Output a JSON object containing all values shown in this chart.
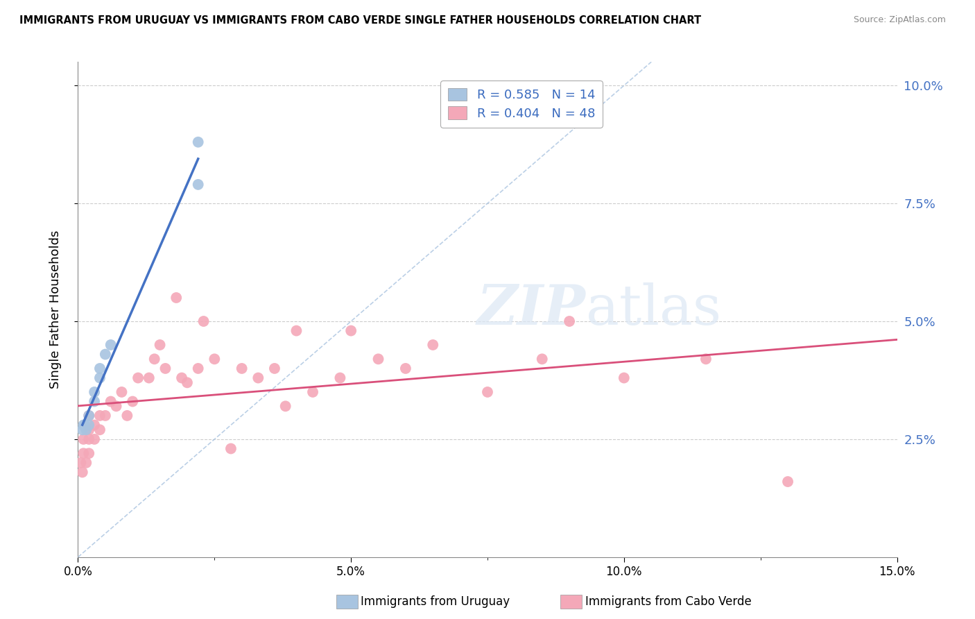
{
  "title": "IMMIGRANTS FROM URUGUAY VS IMMIGRANTS FROM CABO VERDE SINGLE FATHER HOUSEHOLDS CORRELATION CHART",
  "source": "Source: ZipAtlas.com",
  "ylabel": "Single Father Households",
  "xmin": 0.0,
  "xmax": 0.15,
  "ymin": 0.0,
  "ymax": 0.105,
  "yticks": [
    0.025,
    0.05,
    0.075,
    0.1
  ],
  "ytick_labels_right": [
    "2.5%",
    "5.0%",
    "7.5%",
    "10.0%"
  ],
  "xticks_major": [
    0.0,
    0.05,
    0.1,
    0.15
  ],
  "xtick_labels": [
    "0.0%",
    "5.0%",
    "10.0%",
    "15.0%"
  ],
  "legend_line1": "R = 0.585   N = 14",
  "legend_line2": "R = 0.404   N = 48",
  "color_uruguay": "#a8c4e0",
  "color_caboverde": "#f4a8b8",
  "color_line_uruguay": "#4472c4",
  "color_line_caboverde": "#d94f7a",
  "color_diag": "#aac4e0",
  "uruguay_x": [
    0.0008,
    0.001,
    0.0012,
    0.0015,
    0.002,
    0.002,
    0.003,
    0.003,
    0.004,
    0.004,
    0.005,
    0.006,
    0.022,
    0.022
  ],
  "uruguay_y": [
    0.027,
    0.028,
    0.028,
    0.027,
    0.028,
    0.03,
    0.033,
    0.035,
    0.04,
    0.038,
    0.043,
    0.045,
    0.079,
    0.088
  ],
  "caboverde_x": [
    0.0005,
    0.0008,
    0.001,
    0.001,
    0.0015,
    0.002,
    0.002,
    0.002,
    0.002,
    0.003,
    0.003,
    0.004,
    0.004,
    0.005,
    0.006,
    0.007,
    0.008,
    0.009,
    0.01,
    0.011,
    0.013,
    0.014,
    0.015,
    0.016,
    0.018,
    0.019,
    0.02,
    0.022,
    0.023,
    0.025,
    0.028,
    0.03,
    0.033,
    0.036,
    0.038,
    0.04,
    0.043,
    0.048,
    0.05,
    0.055,
    0.06,
    0.065,
    0.075,
    0.085,
    0.09,
    0.1,
    0.115,
    0.13
  ],
  "caboverde_y": [
    0.02,
    0.018,
    0.022,
    0.025,
    0.02,
    0.025,
    0.027,
    0.03,
    0.022,
    0.025,
    0.028,
    0.03,
    0.027,
    0.03,
    0.033,
    0.032,
    0.035,
    0.03,
    0.033,
    0.038,
    0.038,
    0.042,
    0.045,
    0.04,
    0.055,
    0.038,
    0.037,
    0.04,
    0.05,
    0.042,
    0.023,
    0.04,
    0.038,
    0.04,
    0.032,
    0.048,
    0.035,
    0.038,
    0.048,
    0.042,
    0.04,
    0.045,
    0.035,
    0.042,
    0.05,
    0.038,
    0.042,
    0.016
  ]
}
